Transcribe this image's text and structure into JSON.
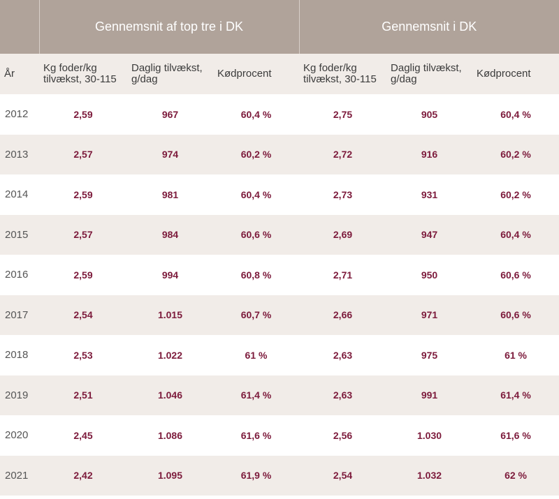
{
  "header": {
    "group_left": "Gennemsnit af top tre i DK",
    "group_right": "Gennemsnit i DK"
  },
  "columns": {
    "year": "År",
    "feed": "Kg foder/kg tilvækst, 30-115",
    "growth": "Daglig tilvækst, g/dag",
    "meat": "Kødprocent"
  },
  "rows": [
    {
      "year": "2012",
      "top_feed": "2,59",
      "top_growth": "967",
      "top_meat": "60,4 %",
      "dk_feed": "2,75",
      "dk_growth": "905",
      "dk_meat": "60,4 %"
    },
    {
      "year": "2013",
      "top_feed": "2,57",
      "top_growth": "974",
      "top_meat": "60,2 %",
      "dk_feed": "2,72",
      "dk_growth": "916",
      "dk_meat": "60,2 %"
    },
    {
      "year": "2014",
      "top_feed": "2,59",
      "top_growth": "981",
      "top_meat": "60,4 %",
      "dk_feed": "2,73",
      "dk_growth": "931",
      "dk_meat": "60,2 %"
    },
    {
      "year": "2015",
      "top_feed": "2,57",
      "top_growth": "984",
      "top_meat": "60,6 %",
      "dk_feed": "2,69",
      "dk_growth": "947",
      "dk_meat": "60,4 %"
    },
    {
      "year": "2016",
      "top_feed": "2,59",
      "top_growth": "994",
      "top_meat": "60,8 %",
      "dk_feed": "2,71",
      "dk_growth": "950",
      "dk_meat": "60,6 %"
    },
    {
      "year": "2017",
      "top_feed": "2,54",
      "top_growth": "1.015",
      "top_meat": "60,7 %",
      "dk_feed": "2,66",
      "dk_growth": "971",
      "dk_meat": "60,6 %"
    },
    {
      "year": "2018",
      "top_feed": "2,53",
      "top_growth": "1.022",
      "top_meat": "61 %",
      "dk_feed": "2,63",
      "dk_growth": "975",
      "dk_meat": "61 %"
    },
    {
      "year": "2019",
      "top_feed": "2,51",
      "top_growth": "1.046",
      "top_meat": "61,4 %",
      "dk_feed": "2,63",
      "dk_growth": "991",
      "dk_meat": "61,4 %"
    },
    {
      "year": "2020",
      "top_feed": "2,45",
      "top_growth": "1.086",
      "top_meat": "61,6 %",
      "dk_feed": "2,56",
      "dk_growth": "1.030",
      "dk_meat": "61,6 %"
    },
    {
      "year": "2021",
      "top_feed": "2,42",
      "top_growth": "1.095",
      "top_meat": "61,9 %",
      "dk_feed": "2,54",
      "dk_growth": "1.032",
      "dk_meat": "62 %"
    }
  ],
  "colors": {
    "header_bg": "#b0a39a",
    "row_alt_bg": "#f1ece8",
    "value_text": "#7c1a3b"
  }
}
